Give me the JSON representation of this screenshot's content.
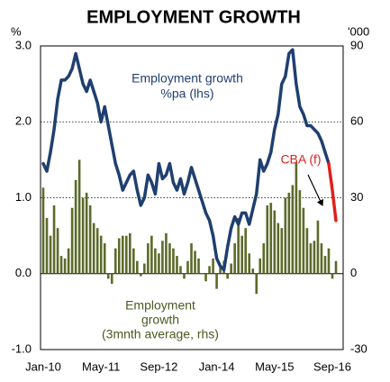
{
  "chart_data": {
    "type": "bar-line",
    "title": "EMPLOYMENT GROWTH",
    "y_label": "%",
    "y2_label": "'000",
    "categories": [
      "Jan-10",
      null,
      null,
      null,
      null,
      null,
      null,
      null,
      null,
      null,
      null,
      null,
      null,
      null,
      null,
      null,
      "May-11",
      null,
      null,
      null,
      null,
      null,
      null,
      null,
      null,
      null,
      null,
      null,
      null,
      null,
      null,
      null,
      "Sep-12",
      null,
      null,
      null,
      null,
      null,
      null,
      null,
      null,
      null,
      null,
      null,
      null,
      null,
      null,
      null,
      "Jan-14",
      null,
      null,
      null,
      null,
      null,
      null,
      null,
      null,
      null,
      null,
      null,
      null,
      null,
      null,
      null,
      "May-15",
      null,
      null,
      null,
      null,
      null,
      null,
      null,
      null,
      null,
      null,
      null,
      null,
      null,
      null,
      null,
      "Sep-16",
      null
    ],
    "ylim": [
      -1,
      3
    ],
    "yticks": [
      {
        "value": 3,
        "label": "3.0"
      },
      {
        "value": 2,
        "label": "2.0"
      },
      {
        "value": 1,
        "label": "1.0"
      },
      {
        "value": 0,
        "label": "0.0"
      },
      {
        "value": -1,
        "label": "-1.0"
      }
    ],
    "y2lim": [
      -30,
      90
    ],
    "y2ticks": [
      90,
      60,
      30,
      0,
      -30
    ],
    "grid": true,
    "series": [
      {
        "type": "bar",
        "axis": "y2",
        "color": "#5c6a2a",
        "values": [
          34,
          22,
          15,
          27,
          18,
          7,
          6,
          10,
          26,
          37,
          45,
          30,
          32,
          27,
          20,
          18,
          15,
          12,
          -2,
          -4,
          10,
          14,
          15,
          15,
          16,
          10,
          5,
          -1,
          4,
          12,
          15,
          10,
          8,
          13,
          16,
          12,
          10,
          7,
          3,
          -2,
          5,
          12,
          9,
          6,
          0,
          -3,
          3,
          6,
          -6,
          3,
          5,
          -2,
          4,
          12,
          22,
          15,
          18,
          8,
          2,
          -8,
          6,
          12,
          27,
          28,
          25,
          20,
          18,
          30,
          32,
          35,
          44,
          33,
          26,
          18,
          12,
          13,
          21,
          12,
          7,
          10,
          -2,
          5
        ]
      },
      {
        "type": "line",
        "axis": "y",
        "color": "#1f3f70",
        "values": [
          1.45,
          1.35,
          1.6,
          1.9,
          2.3,
          2.55,
          2.55,
          2.6,
          2.7,
          2.9,
          2.7,
          2.5,
          2.4,
          2.55,
          2.4,
          2.25,
          2.0,
          2.2,
          1.95,
          1.7,
          1.45,
          1.3,
          1.1,
          1.2,
          1.3,
          1.35,
          1.1,
          0.9,
          1.0,
          1.3,
          1.2,
          1.05,
          1.45,
          1.25,
          1.3,
          1.45,
          1.2,
          1.1,
          1.25,
          1.05,
          1.2,
          1.4,
          1.25,
          1.1,
          0.95,
          0.8,
          0.7,
          0.5,
          0.2,
          0.1,
          0.05,
          0.35,
          0.6,
          0.75,
          0.65,
          0.8,
          0.8,
          0.65,
          0.85,
          1.05,
          1.5,
          1.35,
          1.45,
          1.6,
          1.9,
          2.1,
          2.5,
          2.6,
          2.9,
          2.95,
          2.5,
          2.2,
          2.1,
          1.95,
          1.95,
          1.9,
          1.85,
          1.75,
          1.6,
          1.45,
          null,
          null
        ]
      },
      {
        "type": "line",
        "axis": "y",
        "color": "#e0201b",
        "values": [
          null,
          null,
          null,
          null,
          null,
          null,
          null,
          null,
          null,
          null,
          null,
          null,
          null,
          null,
          null,
          null,
          null,
          null,
          null,
          null,
          null,
          null,
          null,
          null,
          null,
          null,
          null,
          null,
          null,
          null,
          null,
          null,
          null,
          null,
          null,
          null,
          null,
          null,
          null,
          null,
          null,
          null,
          null,
          null,
          null,
          null,
          null,
          null,
          null,
          null,
          null,
          null,
          null,
          null,
          null,
          null,
          null,
          null,
          null,
          null,
          null,
          null,
          null,
          null,
          null,
          null,
          null,
          null,
          null,
          null,
          null,
          null,
          null,
          null,
          null,
          null,
          null,
          null,
          null,
          1.45,
          1.1,
          0.7
        ]
      }
    ],
    "annotations": [
      {
        "lines": [
          "Employment growth",
          "%pa (lhs)"
        ],
        "color": "#1f3f70"
      },
      {
        "lines": [
          "Employment",
          "growth",
          "(3mnth average, rhs)"
        ],
        "color": "#4a5a1e"
      },
      {
        "lines": [
          "CBA (f)"
        ],
        "color": "#e0201b"
      }
    ]
  }
}
